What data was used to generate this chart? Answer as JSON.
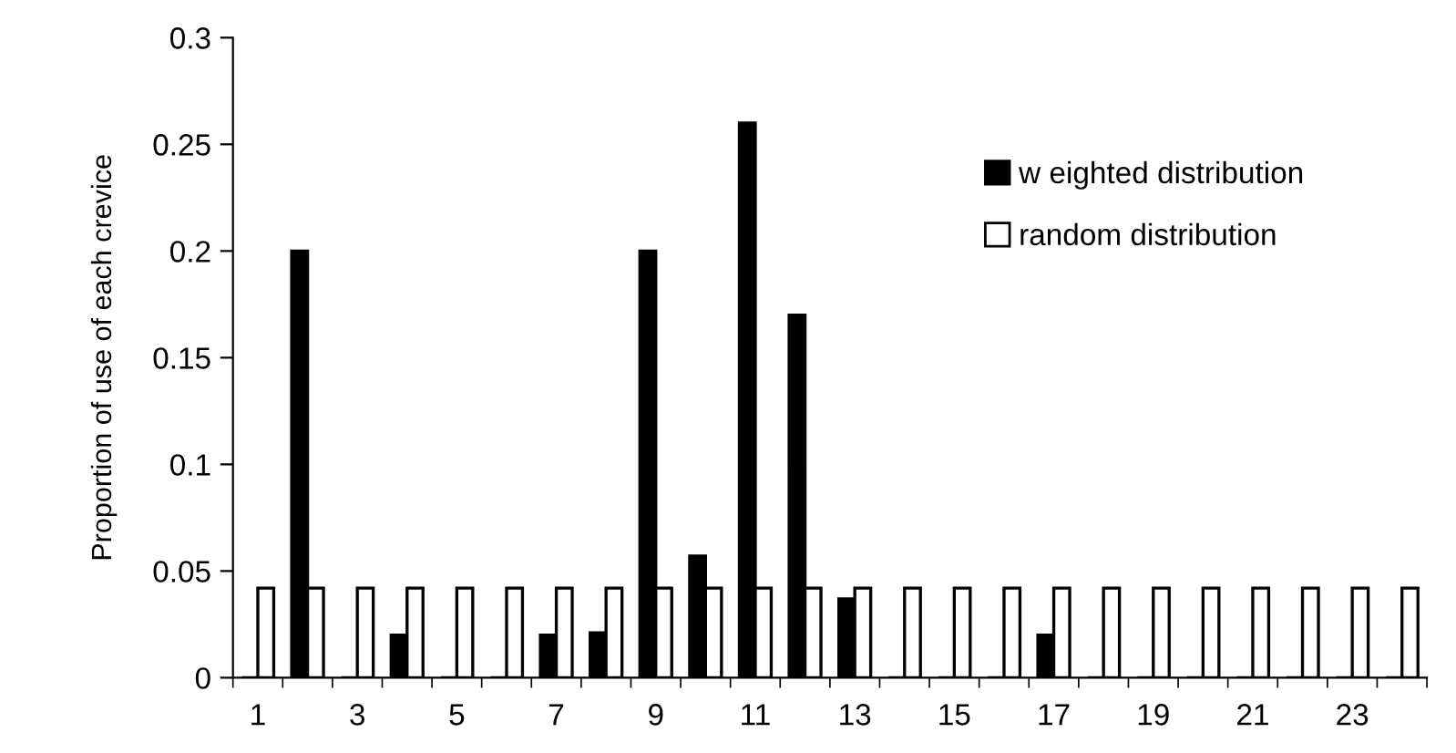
{
  "chart_data": {
    "type": "bar",
    "ylabel": "Proportion of use of each crevice",
    "categories": [
      "1",
      null,
      "3",
      null,
      "5",
      null,
      "7",
      null,
      "9",
      null,
      "11",
      null,
      "13",
      null,
      "15",
      null,
      "17",
      null,
      "19",
      null,
      "21",
      null,
      "23",
      null
    ],
    "series": [
      {
        "name": "w eighted distribution",
        "color": "#000000",
        "values": [
          0,
          0.2,
          0,
          0.02,
          0,
          0,
          0.02,
          0.021,
          0.2,
          0.057,
          0.26,
          0.17,
          0.037,
          0,
          0,
          0,
          0.02,
          0,
          0,
          0,
          0,
          0,
          0,
          0
        ]
      },
      {
        "name": "random distribution",
        "color": "#ffffff",
        "values": [
          0.042,
          0.042,
          0.042,
          0.042,
          0.042,
          0.042,
          0.042,
          0.042,
          0.042,
          0.042,
          0.042,
          0.042,
          0.042,
          0.042,
          0.042,
          0.042,
          0.042,
          0.042,
          0.042,
          0.042,
          0.042,
          0.042,
          0.042,
          0.042
        ]
      }
    ],
    "ylim": [
      0,
      0.3
    ],
    "yticks": [
      0,
      0.05,
      0.1,
      0.15,
      0.2,
      0.25,
      0.3
    ],
    "legend": "top right",
    "grid": false
  }
}
